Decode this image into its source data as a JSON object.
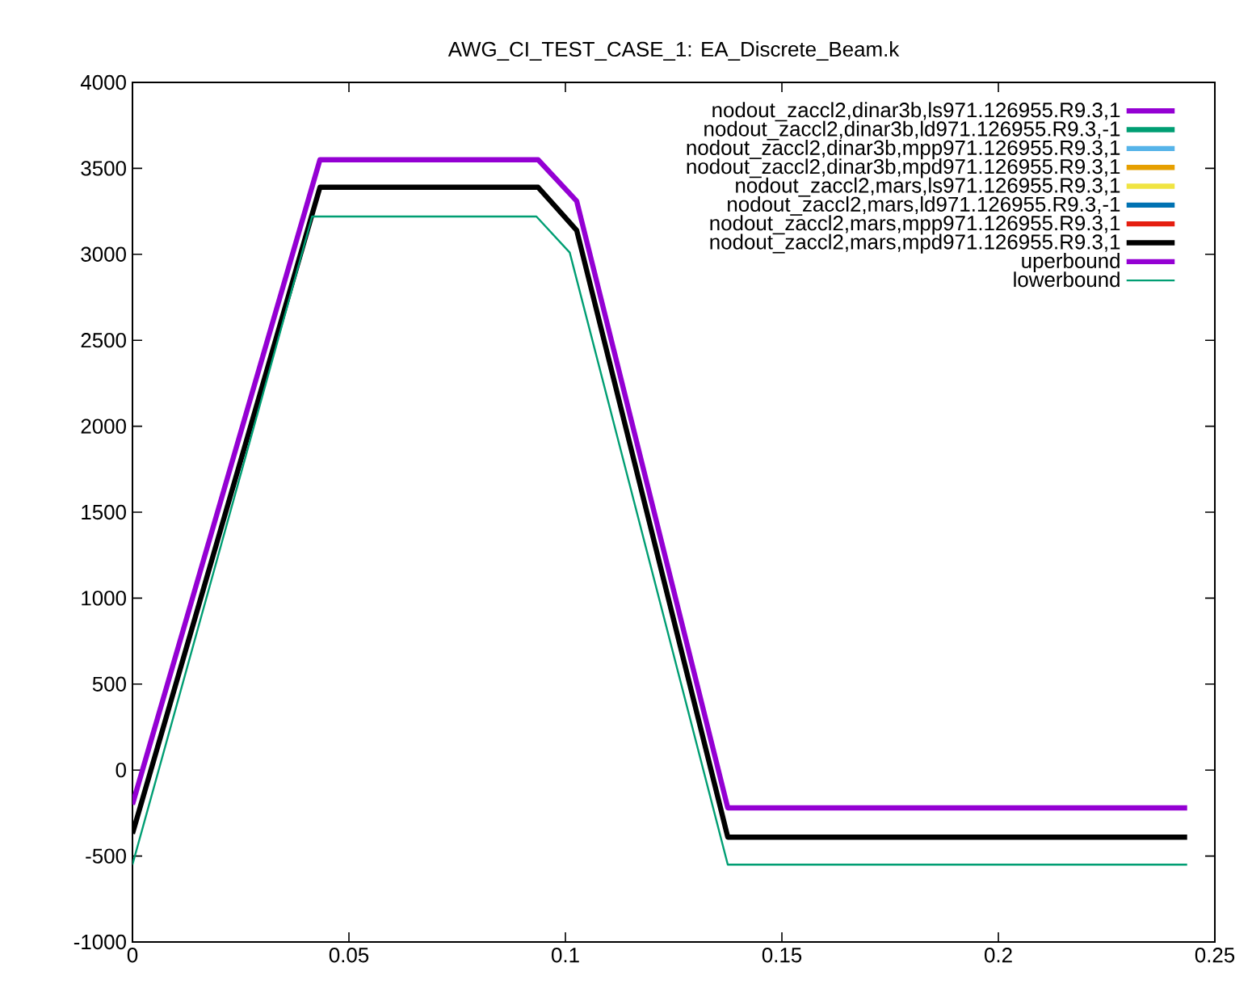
{
  "chart_data": {
    "type": "line",
    "title": "AWG_CI_TEST_CASE_1: EA_Discrete_Beam.k",
    "xlim": [
      0,
      0.25
    ],
    "ylim": [
      -1000,
      4000
    ],
    "xticks": [
      0,
      0.05,
      0.1,
      0.15,
      0.2,
      0.25
    ],
    "yticks": [
      -1000,
      -500,
      0,
      500,
      1000,
      1500,
      2000,
      2500,
      3000,
      3500,
      4000
    ],
    "grid": false,
    "legend": "top right",
    "marker": "none",
    "line_style": "solid",
    "series": [
      {
        "name": "nodout_zaccl2,dinar3b,ls971.126955.R9.3,1",
        "color": "#9400d3"
      },
      {
        "name": "nodout_zaccl2,dinar3b,ld971.126955.R9.3,-1",
        "color": "#009e73"
      },
      {
        "name": "nodout_zaccl2,dinar3b,mpp971.126955.R9.3,1",
        "color": "#56b4e9"
      },
      {
        "name": "nodout_zaccl2,dinar3b,mpd971.126955.R9.3,1",
        "color": "#e69f00"
      },
      {
        "name": "nodout_zaccl2,mars,ls971.126955.R9.3,1",
        "color": "#f0e442"
      },
      {
        "name": "nodout_zaccl2,mars,ld971.126955.R9.3,-1",
        "color": "#0072b2"
      },
      {
        "name": "nodout_zaccl2,mars,mpp971.126955.R9.3,1",
        "color": "#e51e10"
      },
      {
        "name": "nodout_zaccl2,mars,mpd971.126955.R9.3,1",
        "color": "#000000",
        "x": [
          0,
          0.0433,
          0.0937,
          0.1026,
          0.1375,
          0.2436
        ],
        "values": [
          -370,
          3390,
          3390,
          3140,
          -390,
          -390
        ]
      },
      {
        "name": "uperbound",
        "color": "#9400d3",
        "x": [
          0,
          0.0433,
          0.0937,
          0.1026,
          0.1375,
          0.2436
        ],
        "values": [
          -200,
          3550,
          3550,
          3310,
          -220,
          -220
        ]
      },
      {
        "name": "lowerbound",
        "color": "#009e73",
        "x": [
          0,
          0.0415,
          0.0933,
          0.101,
          0.1375,
          0.2436
        ],
        "values": [
          -550,
          3220,
          3220,
          3010,
          -550,
          -550
        ]
      }
    ]
  }
}
